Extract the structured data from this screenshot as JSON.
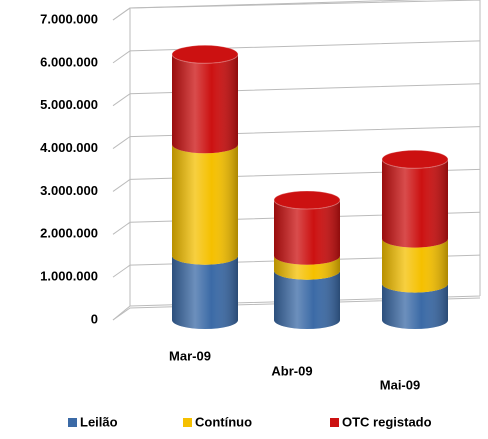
{
  "chart_data": {
    "type": "bar",
    "stacked": true,
    "categories": [
      "Mar-09",
      "Abr-09",
      "Mai-09"
    ],
    "series": [
      {
        "name": "Leilão",
        "color": "#3b6aa6",
        "values": [
          1500000,
          1150000,
          850000
        ]
      },
      {
        "name": "Contínuo",
        "color": "#f5c000",
        "values": [
          2600000,
          350000,
          1050000
        ]
      },
      {
        "name": "OTC registado",
        "color": "#cc1111",
        "values": [
          2100000,
          1300000,
          1850000
        ]
      }
    ],
    "ylim": [
      0,
      7000000
    ],
    "yticks": [
      0,
      {
        "value": 1000000,
        "label": "1.000.000"
      },
      {
        "value": 2000000,
        "label": "2.000.000"
      },
      {
        "value": 3000000,
        "label": "3.000.000"
      },
      {
        "value": 4000000,
        "label": "4.000.000"
      },
      {
        "value": 5000000,
        "label": "5.000.000"
      },
      {
        "value": 6000000,
        "label": "6.000.000"
      },
      {
        "value": 7000000,
        "label": "7.000.000"
      }
    ],
    "grid": true,
    "legend": "bottom"
  }
}
